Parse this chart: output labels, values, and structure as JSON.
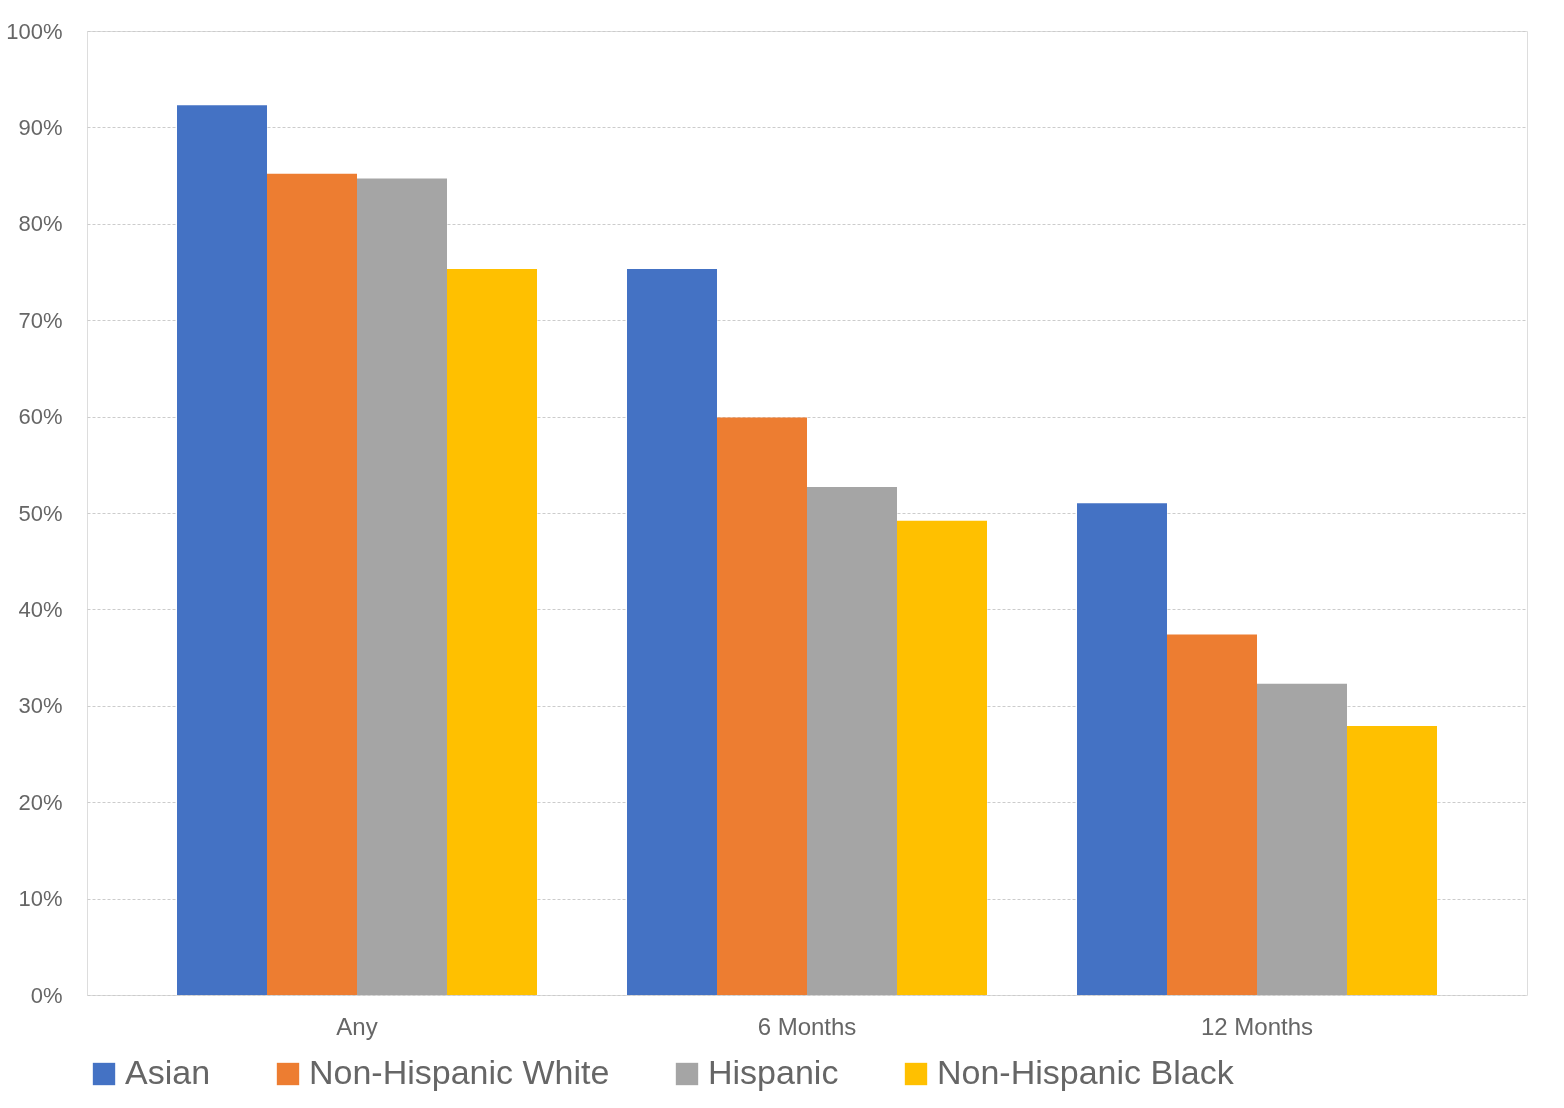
{
  "chart_data": {
    "type": "bar",
    "categories": [
      "Any",
      "6 Months",
      "12 Months"
    ],
    "series": [
      {
        "name": "Asian",
        "color": "#4472c4",
        "values": [
          92.3,
          75.3,
          51.0
        ]
      },
      {
        "name": "Non-Hispanic White",
        "color": "#ed7d31",
        "values": [
          85.2,
          59.9,
          37.4
        ]
      },
      {
        "name": "Hispanic",
        "color": "#a5a5a5",
        "values": [
          84.7,
          52.7,
          32.3
        ]
      },
      {
        "name": "Non-Hispanic Black",
        "color": "#ffc000",
        "values": [
          75.3,
          49.2,
          27.9
        ]
      }
    ],
    "ylim": [
      0,
      100
    ],
    "yticks": [
      {
        "value": 0,
        "label": "0%"
      },
      {
        "value": 10,
        "label": "10%"
      },
      {
        "value": 20,
        "label": "20%"
      },
      {
        "value": 30,
        "label": "30%"
      },
      {
        "value": 40,
        "label": "40%"
      },
      {
        "value": 50,
        "label": "50%"
      },
      {
        "value": 60,
        "label": "60%"
      },
      {
        "value": 70,
        "label": "70%"
      },
      {
        "value": 80,
        "label": "80%"
      },
      {
        "value": 90,
        "label": "90%"
      },
      {
        "value": 100,
        "label": "100%"
      }
    ],
    "grid": "y",
    "legend": "bottom"
  }
}
